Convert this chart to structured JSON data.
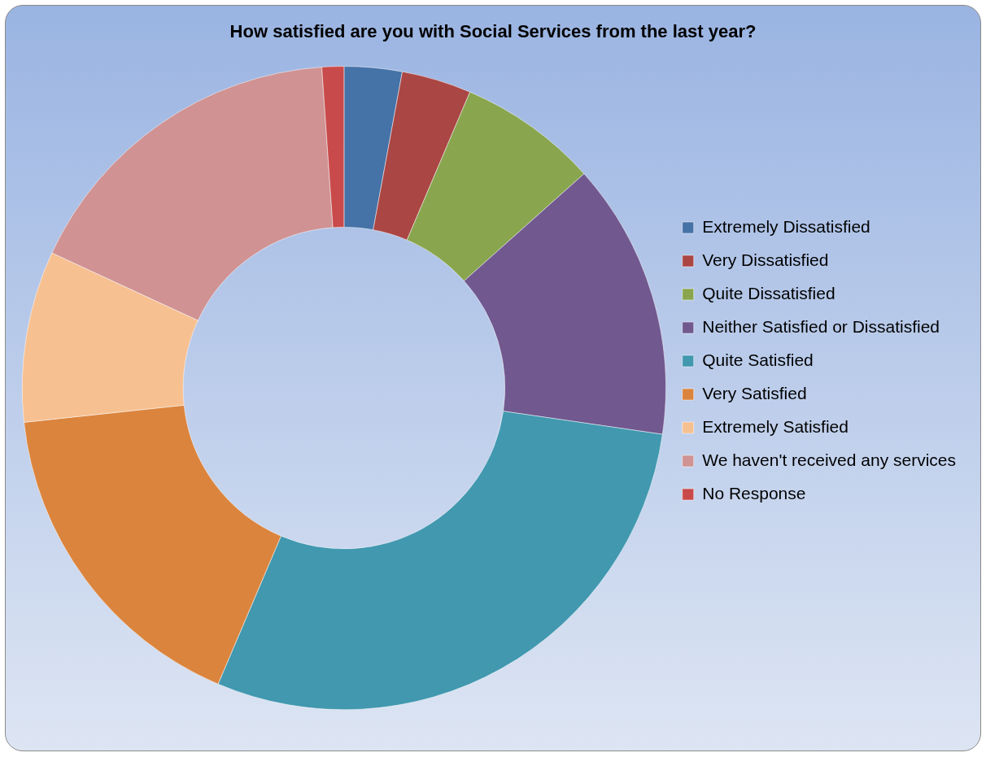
{
  "chart_data": {
    "type": "donut",
    "title": "How satisfied are you with Social Services from the last year?",
    "categories": [
      "Extremely Dissatisfied",
      "Very Dissatisfied",
      "Quite Dissatisfied",
      "Neither Satisfied or Dissatisfied",
      "Quite Satisfied",
      "Very Satisfied",
      "Extremely Satisfied",
      "We haven't received any services",
      "No Response"
    ],
    "values": [
      2.9,
      3.5,
      7.0,
      13.9,
      29.1,
      16.9,
      8.6,
      17.0,
      1.1
    ],
    "colors": [
      "#4572a7",
      "#aa4643",
      "#89a54e",
      "#71588f",
      "#4198af",
      "#db843d",
      "#f7c090",
      "#d09292",
      "#c94a4a"
    ],
    "legend": "right"
  }
}
